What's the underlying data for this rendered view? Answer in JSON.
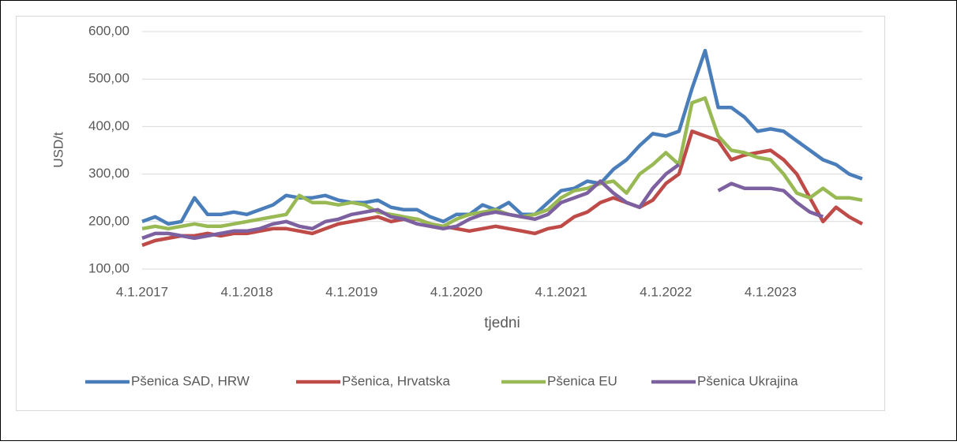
{
  "chart_data": {
    "type": "line",
    "y_label": "USD/t",
    "x_label": "tjedni",
    "categories": [
      "4.1.2017",
      null,
      null,
      null,
      null,
      null,
      null,
      null,
      "4.1.2018",
      null,
      null,
      null,
      null,
      null,
      null,
      null,
      "4.1.2019",
      null,
      null,
      null,
      null,
      null,
      null,
      null,
      "4.1.2020",
      null,
      null,
      null,
      null,
      null,
      null,
      null,
      "4.1.2021",
      null,
      null,
      null,
      null,
      null,
      null,
      null,
      "4.1.2022",
      null,
      null,
      null,
      null,
      null,
      null,
      null,
      "4.1.2023",
      null,
      null,
      null,
      null,
      null,
      null,
      null
    ],
    "ylim": [
      100,
      600
    ],
    "yticks": [
      {
        "value": 100,
        "label": "100,00"
      },
      {
        "value": 200,
        "label": "200,00"
      },
      {
        "value": 300,
        "label": "300,00"
      },
      {
        "value": 400,
        "label": "400,00"
      },
      {
        "value": 500,
        "label": "500,00"
      },
      {
        "value": 600,
        "label": "600,00"
      }
    ],
    "grid": true,
    "legend": "bottom",
    "series": [
      {
        "name": "Pšenica SAD, HRW",
        "color": "#4a7ebb",
        "values": [
          200,
          210,
          195,
          200,
          250,
          215,
          215,
          220,
          215,
          225,
          235,
          255,
          250,
          250,
          255,
          245,
          240,
          240,
          245,
          230,
          225,
          225,
          210,
          200,
          215,
          215,
          235,
          225,
          240,
          215,
          215,
          240,
          265,
          270,
          285,
          280,
          310,
          330,
          360,
          385,
          380,
          390,
          480,
          560,
          440,
          440,
          420,
          390,
          395,
          390,
          370,
          350,
          330,
          320,
          300,
          290
        ]
      },
      {
        "name": "Pšenica, Hrvatska",
        "color": "#be4b48",
        "values": [
          150,
          160,
          165,
          170,
          170,
          175,
          170,
          175,
          175,
          180,
          185,
          185,
          180,
          175,
          185,
          195,
          200,
          205,
          210,
          200,
          205,
          205,
          195,
          190,
          185,
          180,
          185,
          190,
          185,
          180,
          175,
          185,
          190,
          210,
          220,
          240,
          250,
          240,
          230,
          245,
          280,
          300,
          390,
          380,
          370,
          330,
          340,
          345,
          350,
          330,
          300,
          250,
          200,
          230,
          210,
          195
        ]
      },
      {
        "name": "Pšenica EU",
        "color": "#98b954",
        "values": [
          185,
          190,
          185,
          190,
          195,
          190,
          190,
          195,
          200,
          205,
          210,
          215,
          255,
          240,
          240,
          235,
          240,
          235,
          220,
          215,
          210,
          205,
          195,
          190,
          205,
          215,
          220,
          225,
          215,
          210,
          215,
          225,
          250,
          265,
          270,
          280,
          285,
          260,
          300,
          320,
          345,
          320,
          450,
          460,
          380,
          350,
          345,
          335,
          330,
          300,
          260,
          250,
          270,
          250,
          250,
          245
        ]
      },
      {
        "name": "Pšenica Ukrajina",
        "color": "#7d60a0",
        "values": [
          165,
          175,
          175,
          170,
          165,
          170,
          175,
          180,
          180,
          185,
          195,
          200,
          190,
          185,
          200,
          205,
          215,
          220,
          225,
          210,
          205,
          195,
          190,
          185,
          190,
          205,
          215,
          220,
          215,
          210,
          205,
          215,
          240,
          250,
          260,
          285,
          260,
          240,
          230,
          270,
          300,
          320,
          null,
          null,
          265,
          280,
          270,
          270,
          270,
          265,
          240,
          220,
          210,
          null,
          null,
          null
        ]
      }
    ]
  }
}
